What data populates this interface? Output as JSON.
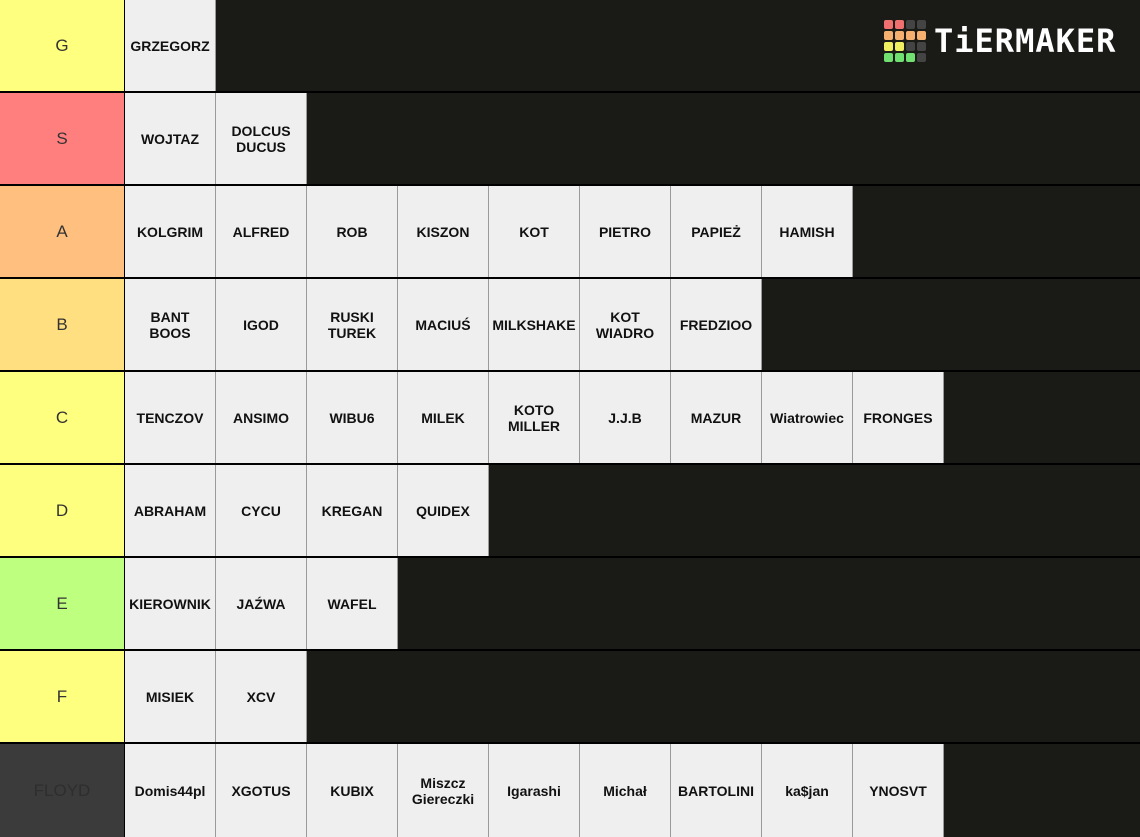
{
  "logo": {
    "text": "TiERMAKER",
    "cells": [
      "#f07070",
      "#f07070",
      "#444",
      "#444",
      "#f5b070",
      "#f5b070",
      "#f5b070",
      "#f5b070",
      "#f0f060",
      "#f0f060",
      "#444",
      "#444",
      "#70e070",
      "#70e070",
      "#70e070",
      "#444"
    ]
  },
  "tiers": [
    {
      "label": "G",
      "color": "#ffff7f",
      "text_color": "#333",
      "items": [
        "GRZEGORZ"
      ]
    },
    {
      "label": "S",
      "color": "#ff7f7f",
      "text_color": "#333",
      "items": [
        "WOJTAZ",
        "DOLCUS\nDUCUS"
      ]
    },
    {
      "label": "A",
      "color": "#ffbf7f",
      "text_color": "#333",
      "items": [
        "KOLGRIM",
        "ALFRED",
        "ROB",
        "KISZON",
        "KOT",
        "PIETRO",
        "PAPIEŻ",
        "HAMISH"
      ]
    },
    {
      "label": "B",
      "color": "#ffdf7f",
      "text_color": "#333",
      "items": [
        "BANT\nBOOS",
        "IGOD",
        "RUSKI\nTUREK",
        "MACIUŚ",
        "MILKSHAKE",
        "KOT\nWIADRO",
        "FREDZIOO"
      ]
    },
    {
      "label": "C",
      "color": "#ffff7f",
      "text_color": "#333",
      "items": [
        "TENCZOV",
        "ANSIMO",
        "WIBU6",
        "MILEK",
        "KOTO\nMILLER",
        "J.J.B",
        "MAZUR",
        "Wiatrowiec",
        "FRONGES"
      ]
    },
    {
      "label": "D",
      "color": "#ffff7f",
      "text_color": "#333",
      "items": [
        "ABRAHAM",
        "CYCU",
        "KREGAN",
        "QUIDEX"
      ]
    },
    {
      "label": "E",
      "color": "#bfff7f",
      "text_color": "#333",
      "items": [
        "KIEROWNIK",
        "JAŹWA",
        "WAFEL"
      ]
    },
    {
      "label": "F",
      "color": "#ffff7f",
      "text_color": "#333",
      "items": [
        "MISIEK",
        "XCV"
      ]
    },
    {
      "label": "FLOYD",
      "color": "#3b3b3b",
      "text_color": "#2e2e2e",
      "items": [
        "Domis44pl",
        "XGOTUS",
        "KUBIX",
        "Miszcz\nGiereczki",
        "Igarashi",
        "Michał",
        "BARTOLINI",
        "ka$jan",
        "YNOSVT"
      ]
    }
  ]
}
